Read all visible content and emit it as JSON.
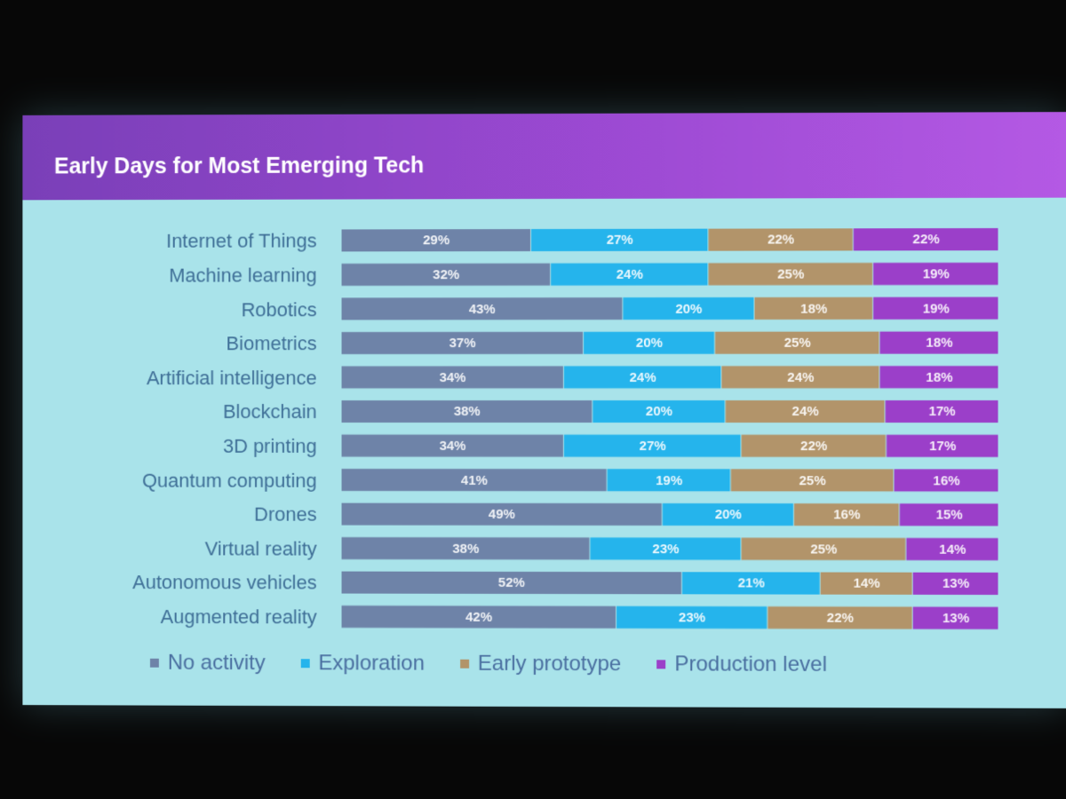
{
  "slide": {
    "title": "Early Days for Most Emerging Tech"
  },
  "chart_data": {
    "type": "bar",
    "orientation": "horizontal",
    "stacked": true,
    "title": "Early Days for Most Emerging Tech",
    "unit": "%",
    "categories": [
      "Internet of Things",
      "Machine learning",
      "Robotics",
      "Biometrics",
      "Artificial intelligence",
      "Blockchain",
      "3D printing",
      "Quantum computing",
      "Drones",
      "Virtual reality",
      "Autonomous vehicles",
      "Augmented reality"
    ],
    "series": [
      {
        "name": "No activity",
        "color": "#6e83a8",
        "values": [
          29,
          32,
          43,
          37,
          34,
          38,
          34,
          41,
          49,
          38,
          52,
          42
        ]
      },
      {
        "name": "Exploration",
        "color": "#25b4ec",
        "values": [
          27,
          24,
          20,
          20,
          24,
          20,
          27,
          19,
          20,
          23,
          21,
          23
        ]
      },
      {
        "name": "Early prototype",
        "color": "#b2946a",
        "values": [
          22,
          25,
          18,
          25,
          24,
          24,
          22,
          25,
          16,
          25,
          14,
          22
        ]
      },
      {
        "name": "Production level",
        "color": "#9b3fc9",
        "values": [
          22,
          19,
          19,
          18,
          18,
          17,
          17,
          16,
          15,
          14,
          13,
          13
        ]
      }
    ],
    "xlim": [
      0,
      100
    ],
    "legend": "bottom"
  }
}
